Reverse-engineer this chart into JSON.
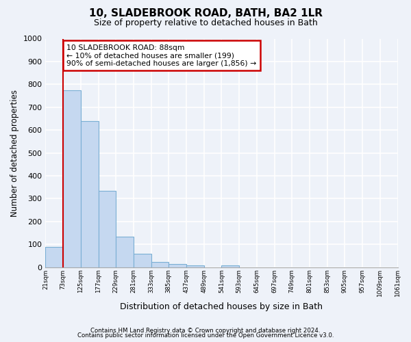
{
  "title": "10, SLADEBROOK ROAD, BATH, BA2 1LR",
  "subtitle": "Size of property relative to detached houses in Bath",
  "xlabel": "Distribution of detached houses by size in Bath",
  "ylabel": "Number of detached properties",
  "bar_values": [
    88,
    775,
    640,
    333,
    133,
    58,
    22,
    15,
    8,
    0,
    8,
    0,
    0,
    0,
    0,
    0,
    0,
    0,
    0,
    0
  ],
  "bin_labels": [
    "21sqm",
    "73sqm",
    "125sqm",
    "177sqm",
    "229sqm",
    "281sqm",
    "333sqm",
    "385sqm",
    "437sqm",
    "489sqm",
    "541sqm",
    "593sqm",
    "645sqm",
    "697sqm",
    "749sqm",
    "801sqm",
    "853sqm",
    "905sqm",
    "957sqm",
    "1009sqm",
    "1061sqm"
  ],
  "bar_color": "#c5d8f0",
  "bar_edge_color": "#7aafd4",
  "vline_x": 1,
  "vline_color": "#cc0000",
  "annotation_text_line1": "10 SLADEBROOK ROAD: 88sqm",
  "annotation_text_line2": "← 10% of detached houses are smaller (199)",
  "annotation_text_line3": "90% of semi-detached houses are larger (1,856) →",
  "box_edge_color": "#cc0000",
  "ylim": [
    0,
    1000
  ],
  "yticks": [
    0,
    100,
    200,
    300,
    400,
    500,
    600,
    700,
    800,
    900,
    1000
  ],
  "footer_line1": "Contains HM Land Registry data © Crown copyright and database right 2024.",
  "footer_line2": "Contains public sector information licensed under the Open Government Licence v3.0.",
  "bg_color": "#eef2f9",
  "plot_bg_color": "#eef2f9",
  "grid_color": "#ffffff"
}
